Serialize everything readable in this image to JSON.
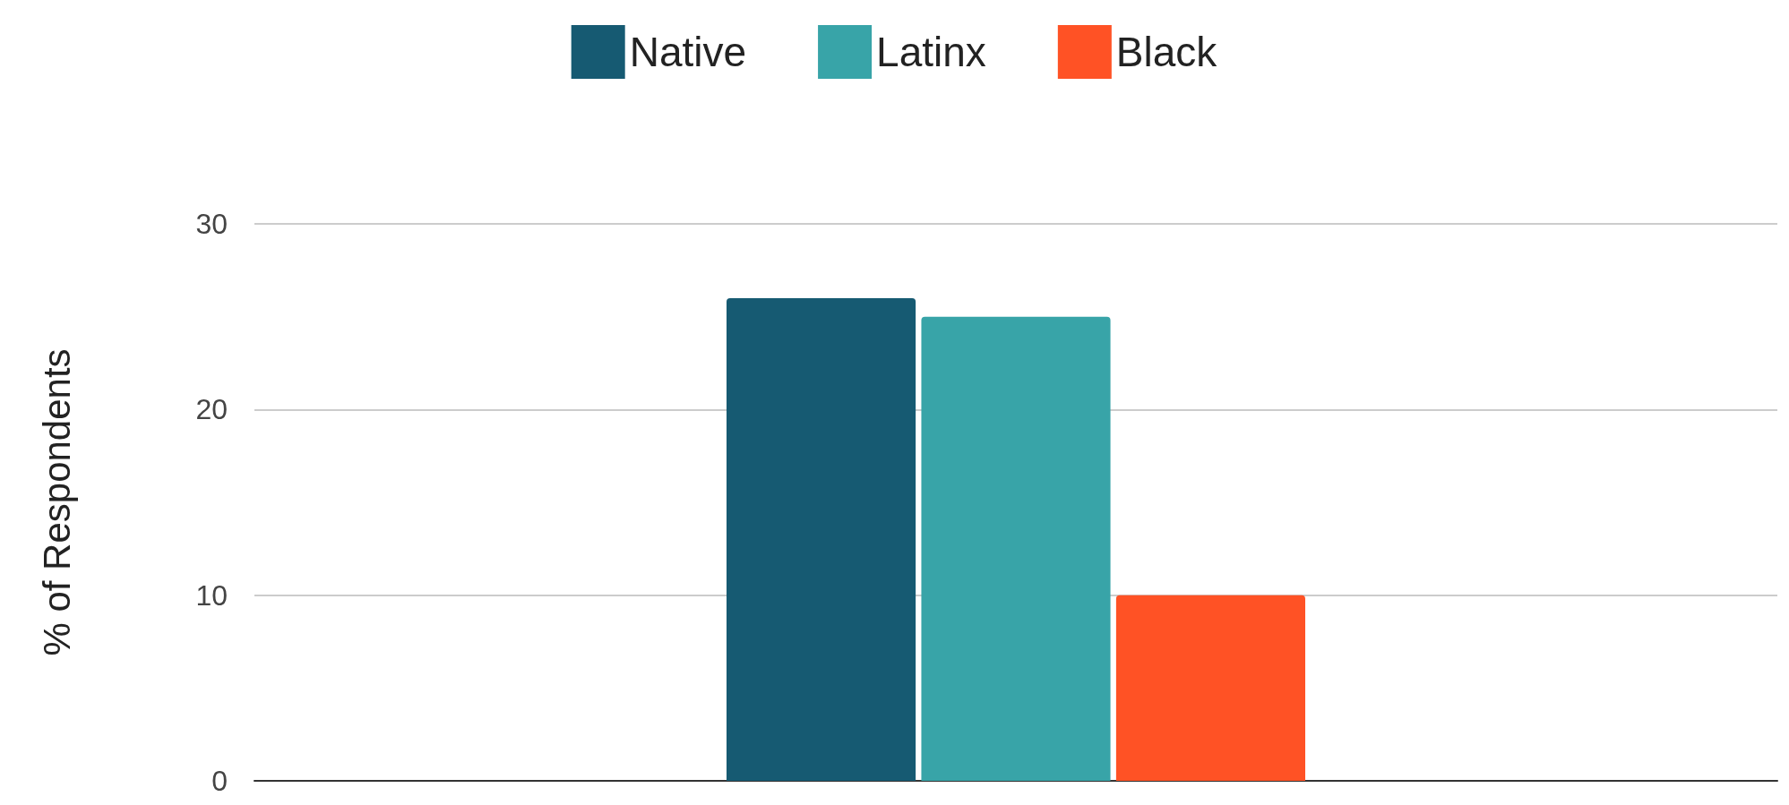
{
  "chart_data": {
    "type": "bar",
    "ylabel": "% of Respondents",
    "categories": [
      null
    ],
    "series": [
      {
        "name": "Native",
        "color": "#165a72",
        "values": [
          26
        ]
      },
      {
        "name": "Latinx",
        "color": "#38a4a8",
        "values": [
          25
        ]
      },
      {
        "name": "Black",
        "color": "#ff5225",
        "values": [
          10
        ]
      }
    ],
    "ylim": [
      0,
      30
    ],
    "yticks": [
      0,
      10,
      20,
      30
    ],
    "grid": "y",
    "legend": "top"
  }
}
